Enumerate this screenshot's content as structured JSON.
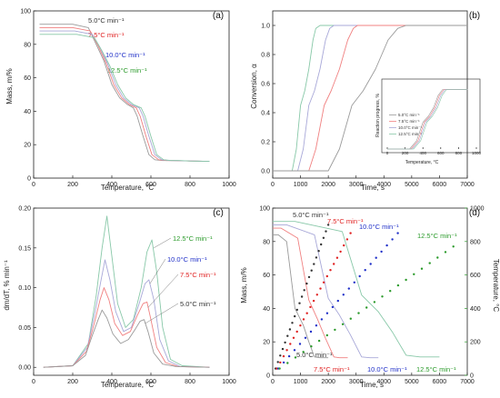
{
  "colors": {
    "r5": "#333333",
    "r7": "#e02020",
    "r10": "#2030c8",
    "r12": "#2a9a2a",
    "curve5": "#9a9a9a",
    "curve7": "#f08080",
    "curve10": "#a8a8d8",
    "curve12": "#88c8a8"
  },
  "chart_data": [
    {
      "id": "a",
      "type": "line",
      "panel_label": "(a)",
      "xlabel": "Temperature, °C",
      "ylabel": "Mass, m/%",
      "xlim": [
        0,
        1000
      ],
      "ylim": [
        0,
        100
      ],
      "xticks": [
        0,
        200,
        400,
        600,
        800,
        1000
      ],
      "yticks": [
        0,
        20,
        40,
        60,
        80,
        100
      ],
      "legend_labels": [
        "5.0°C min⁻¹",
        "7.5°C min⁻¹",
        "10.0°C min⁻¹",
        "12.5°C min⁻¹"
      ],
      "series": [
        {
          "name": "5.0°C min⁻¹",
          "x": [
            30,
            200,
            280,
            320,
            360,
            400,
            440,
            480,
            510,
            530,
            560,
            590,
            620,
            660,
            700,
            800,
            900
          ],
          "y": [
            92,
            92,
            90,
            80,
            70,
            56,
            48,
            44,
            42,
            37,
            25,
            14,
            11,
            10.5,
            10.5,
            10.2,
            10
          ]
        },
        {
          "name": "7.5°C min⁻¹",
          "x": [
            30,
            200,
            290,
            330,
            370,
            410,
            450,
            490,
            525,
            545,
            575,
            605,
            640,
            680,
            720,
            800,
            900
          ],
          "y": [
            90,
            90,
            88,
            79,
            69,
            56,
            48,
            44,
            42,
            37,
            25,
            14,
            11,
            10.5,
            10.5,
            10.2,
            10
          ]
        },
        {
          "name": "10.0°C min⁻¹",
          "x": [
            30,
            210,
            300,
            340,
            380,
            420,
            460,
            500,
            540,
            560,
            590,
            620,
            655,
            695,
            735,
            800,
            900
          ],
          "y": [
            88,
            88,
            86,
            78,
            68,
            56,
            48,
            44,
            42,
            37,
            25,
            14,
            11,
            10.5,
            10.5,
            10.2,
            10
          ]
        },
        {
          "name": "12.5°C min⁻¹",
          "x": [
            30,
            220,
            310,
            350,
            390,
            430,
            470,
            510,
            550,
            570,
            600,
            630,
            665,
            705,
            745,
            800,
            900
          ],
          "y": [
            86,
            86,
            84,
            76,
            67,
            56,
            48,
            44,
            42,
            37,
            25,
            14,
            11,
            10.5,
            10.5,
            10.2,
            10
          ]
        }
      ]
    },
    {
      "id": "b",
      "type": "line",
      "panel_label": "(b)",
      "xlabel": "Time, s",
      "ylabel": "Conversion, α",
      "xlim": [
        0,
        7000
      ],
      "ylim": [
        -0.05,
        1.1
      ],
      "xticks": [
        0,
        1000,
        2000,
        3000,
        4000,
        5000,
        6000,
        7000
      ],
      "yticks": [
        0.0,
        0.2,
        0.4,
        0.6,
        0.8,
        1.0
      ],
      "series": [
        {
          "name": "12.5°C min⁻¹",
          "x": [
            0,
            700,
            850,
            1000,
            1150,
            1300,
            1450,
            1550,
            1700,
            7000
          ],
          "y": [
            0,
            0,
            0.15,
            0.45,
            0.55,
            0.7,
            0.9,
            0.98,
            1.0,
            1.0
          ]
        },
        {
          "name": "10.0°C min⁻¹",
          "x": [
            0,
            900,
            1100,
            1300,
            1500,
            1700,
            1900,
            2050,
            2200,
            7000
          ],
          "y": [
            0,
            0,
            0.15,
            0.45,
            0.55,
            0.7,
            0.9,
            0.98,
            1.0,
            1.0
          ]
        },
        {
          "name": "7.5°C min⁻¹",
          "x": [
            0,
            1300,
            1550,
            1850,
            2100,
            2400,
            2700,
            2900,
            3050,
            7000
          ],
          "y": [
            0,
            0,
            0.15,
            0.45,
            0.55,
            0.7,
            0.9,
            0.98,
            1.0,
            1.0
          ]
        },
        {
          "name": "5.0°C min⁻¹",
          "x": [
            0,
            2000,
            2400,
            2850,
            3250,
            3700,
            4150,
            4500,
            4800,
            7000
          ],
          "y": [
            0,
            0,
            0.15,
            0.45,
            0.55,
            0.7,
            0.9,
            0.98,
            1.0,
            1.0
          ]
        }
      ],
      "inset": {
        "xlabel": "Temperature, °C",
        "ylabel": "Reaction progress, %",
        "xlim": [
          0,
          1000
        ],
        "ylim": [
          0,
          110
        ],
        "xticks": [
          0,
          200,
          400,
          600,
          800,
          1000
        ],
        "legend_labels": [
          "5.0°C min⁻¹",
          "7.5°C min⁻¹",
          "10.0°C min⁻¹",
          "12.5°C min⁻¹"
        ],
        "series": [
          {
            "name": "5.0°C min⁻¹",
            "x": [
              0,
              250,
              330,
              400,
              460,
              520,
              570,
              620,
              900
            ],
            "y": [
              0,
              0,
              14,
              45,
              55,
              70,
              90,
              100,
              100
            ]
          },
          {
            "name": "7.5°C min⁻¹",
            "x": [
              0,
              265,
              345,
              415,
              475,
              535,
              585,
              635,
              900
            ],
            "y": [
              0,
              0,
              14,
              45,
              55,
              70,
              90,
              100,
              100
            ]
          },
          {
            "name": "10.0°C min⁻¹",
            "x": [
              0,
              280,
              360,
              430,
              490,
              550,
              600,
              650,
              900
            ],
            "y": [
              0,
              0,
              14,
              45,
              55,
              70,
              90,
              100,
              100
            ]
          },
          {
            "name": "12.5°C min⁻¹",
            "x": [
              0,
              295,
              375,
              445,
              505,
              565,
              615,
              665,
              900
            ],
            "y": [
              0,
              0,
              14,
              45,
              55,
              70,
              90,
              100,
              100
            ]
          }
        ]
      }
    },
    {
      "id": "c",
      "type": "line",
      "panel_label": "(c)",
      "xlabel": "Temperature, °C",
      "ylabel": "dm/dT, % min⁻¹",
      "xlim": [
        0,
        1000
      ],
      "ylim": [
        -0.01,
        0.2
      ],
      "xticks": [
        0,
        200,
        400,
        600,
        800,
        1000
      ],
      "yticks": [
        0.0,
        0.05,
        0.1,
        0.15,
        0.2
      ],
      "legend_labels": [
        "12.5°C min⁻¹",
        "10.0°C min⁻¹",
        "7.5°C min⁻¹",
        "5.0°C min⁻¹"
      ],
      "series": [
        {
          "name": "12.5°C min⁻¹",
          "x": [
            50,
            200,
            280,
            320,
            350,
            375,
            400,
            430,
            470,
            510,
            550,
            580,
            605,
            630,
            660,
            700,
            760,
            900
          ],
          "y": [
            0,
            0.002,
            0.03,
            0.09,
            0.15,
            0.19,
            0.14,
            0.08,
            0.05,
            0.06,
            0.1,
            0.145,
            0.16,
            0.12,
            0.05,
            0.01,
            0.002,
            0.0
          ]
        },
        {
          "name": "10.0°C min⁻¹",
          "x": [
            50,
            200,
            275,
            315,
            345,
            365,
            390,
            420,
            460,
            500,
            540,
            570,
            590,
            615,
            645,
            690,
            750,
            900
          ],
          "y": [
            0,
            0.002,
            0.025,
            0.07,
            0.11,
            0.135,
            0.11,
            0.07,
            0.045,
            0.05,
            0.08,
            0.105,
            0.11,
            0.085,
            0.035,
            0.008,
            0.001,
            0.0
          ]
        },
        {
          "name": "7.5°C min⁻¹",
          "x": [
            50,
            200,
            270,
            310,
            340,
            360,
            385,
            415,
            455,
            495,
            530,
            560,
            580,
            600,
            630,
            675,
            740,
            900
          ],
          "y": [
            0,
            0.002,
            0.02,
            0.055,
            0.085,
            0.1,
            0.085,
            0.055,
            0.04,
            0.045,
            0.065,
            0.08,
            0.082,
            0.06,
            0.025,
            0.006,
            0.001,
            0.0
          ]
        },
        {
          "name": "5.0°C min⁻¹",
          "x": [
            50,
            200,
            265,
            300,
            330,
            350,
            375,
            405,
            445,
            485,
            520,
            545,
            565,
            585,
            615,
            660,
            730,
            900
          ],
          "y": [
            0,
            0.002,
            0.015,
            0.04,
            0.06,
            0.072,
            0.062,
            0.042,
            0.03,
            0.035,
            0.048,
            0.058,
            0.06,
            0.045,
            0.018,
            0.004,
            0.001,
            0.0
          ]
        }
      ]
    },
    {
      "id": "d",
      "type": "line",
      "panel_label": "(d)",
      "xlabel": "Time, s",
      "ylabel": "Mass, m/%",
      "ylabel_right": "Temperature, °C",
      "xlim": [
        0,
        7000
      ],
      "ylim": [
        0,
        100
      ],
      "ylim_right": [
        0,
        1000
      ],
      "xticks": [
        0,
        1000,
        2000,
        3000,
        4000,
        5000,
        6000,
        7000
      ],
      "yticks": [
        0,
        20,
        40,
        60,
        80,
        100
      ],
      "yticks_right": [
        0,
        200,
        400,
        600,
        800,
        1000
      ],
      "top_labels": [
        "5.0°C min⁻¹",
        "7.5°C min⁻¹",
        "10.0°C min⁻¹",
        "12.5°C min⁻¹"
      ],
      "bottom_labels": [
        "5.0°C min⁻¹",
        "7.5°C min⁻¹",
        "10.0°C min⁻¹",
        "12.5°C min⁻¹"
      ],
      "mass_series": [
        {
          "name": "5.0°C min⁻¹",
          "x": [
            0,
            200,
            500,
            800,
            1100,
            1300,
            1500,
            1700,
            2000
          ],
          "y": [
            84,
            84,
            80,
            40,
            30,
            20,
            11,
            10.5,
            10.5
          ]
        },
        {
          "name": "7.5°C min⁻¹",
          "x": [
            0,
            300,
            900,
            1300,
            1600,
            1900,
            2200,
            2400,
            2700
          ],
          "y": [
            88,
            88,
            82,
            45,
            34,
            22,
            11,
            10.5,
            10.5
          ]
        },
        {
          "name": "10.0°C min⁻¹",
          "x": [
            0,
            500,
            1500,
            2000,
            2400,
            2800,
            3200,
            3500,
            3800
          ],
          "y": [
            90,
            90,
            84,
            46,
            36,
            24,
            11,
            10.5,
            10.5
          ]
        },
        {
          "name": "12.5°C min⁻¹",
          "x": [
            0,
            800,
            2500,
            3200,
            3800,
            4300,
            4800,
            5300,
            6000
          ],
          "y": [
            92,
            92,
            86,
            48,
            38,
            26,
            12,
            11,
            11
          ]
        }
      ],
      "temperature_series": [
        {
          "name": "5.0°C min⁻¹",
          "x": [
            100,
            2000
          ],
          "y": [
            40,
            900
          ]
        },
        {
          "name": "7.5°C min⁻¹",
          "x": [
            150,
            2800
          ],
          "y": [
            40,
            850
          ]
        },
        {
          "name": "10.0°C min⁻¹",
          "x": [
            200,
            4500
          ],
          "y": [
            40,
            850
          ]
        },
        {
          "name": "12.5°C min⁻¹",
          "x": [
            250,
            6500
          ],
          "y": [
            40,
            770
          ]
        }
      ]
    }
  ]
}
